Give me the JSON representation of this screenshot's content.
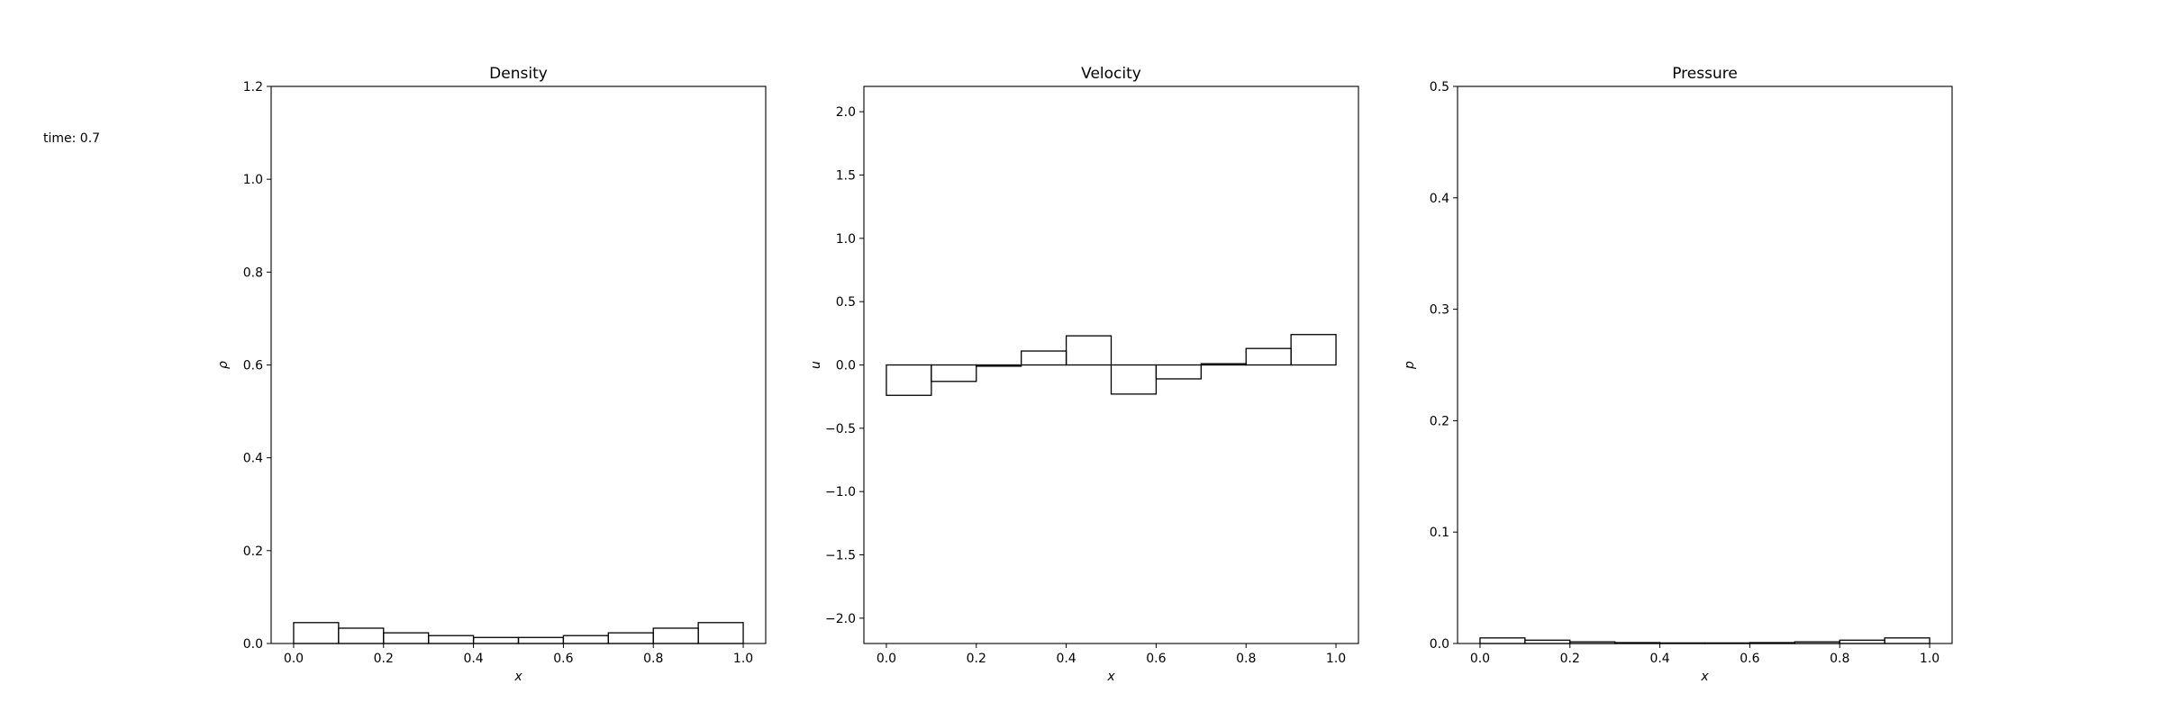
{
  "time_label": "time: 0.7",
  "chart_data": [
    {
      "type": "bar",
      "title": "Density",
      "xlabel": "x",
      "ylabel": "ρ",
      "xlim": [
        -0.05,
        1.05
      ],
      "ylim": [
        0,
        1.2
      ],
      "xticks": [
        0.0,
        0.2,
        0.4,
        0.6,
        0.8,
        1.0
      ],
      "xtick_labels": [
        "0.0",
        "0.2",
        "0.4",
        "0.6",
        "0.8",
        "1.0"
      ],
      "yticks": [
        0.0,
        0.2,
        0.4,
        0.6,
        0.8,
        1.0,
        1.2
      ],
      "ytick_labels": [
        "0.0",
        "0.2",
        "0.4",
        "0.6",
        "0.8",
        "1.0",
        "1.2"
      ],
      "bin_edges": [
        0.0,
        0.1,
        0.2,
        0.3,
        0.4,
        0.5,
        0.6,
        0.7,
        0.8,
        0.9,
        1.0
      ],
      "values": [
        0.045,
        0.033,
        0.023,
        0.017,
        0.013,
        0.013,
        0.017,
        0.023,
        0.033,
        0.045
      ]
    },
    {
      "type": "bar",
      "title": "Velocity",
      "xlabel": "x",
      "ylabel": "u",
      "xlim": [
        -0.05,
        1.05
      ],
      "ylim": [
        -2.2,
        2.2
      ],
      "xticks": [
        0.0,
        0.2,
        0.4,
        0.6,
        0.8,
        1.0
      ],
      "xtick_labels": [
        "0.0",
        "0.2",
        "0.4",
        "0.6",
        "0.8",
        "1.0"
      ],
      "yticks": [
        -2.0,
        -1.5,
        -1.0,
        -0.5,
        0.0,
        0.5,
        1.0,
        1.5,
        2.0
      ],
      "ytick_labels": [
        "−2.0",
        "−1.5",
        "−1.0",
        "−0.5",
        "0.0",
        "0.5",
        "1.0",
        "1.5",
        "2.0"
      ],
      "bin_edges": [
        0.0,
        0.1,
        0.2,
        0.3,
        0.4,
        0.5,
        0.6,
        0.7,
        0.8,
        0.9,
        1.0
      ],
      "values": [
        -0.24,
        -0.13,
        -0.01,
        0.11,
        0.23,
        -0.23,
        -0.11,
        0.01,
        0.13,
        0.24
      ]
    },
    {
      "type": "bar",
      "title": "Pressure",
      "xlabel": "x",
      "ylabel": "p",
      "xlim": [
        -0.05,
        1.05
      ],
      "ylim": [
        0,
        0.5
      ],
      "xticks": [
        0.0,
        0.2,
        0.4,
        0.6,
        0.8,
        1.0
      ],
      "xtick_labels": [
        "0.0",
        "0.2",
        "0.4",
        "0.6",
        "0.8",
        "1.0"
      ],
      "yticks": [
        0.0,
        0.1,
        0.2,
        0.3,
        0.4,
        0.5
      ],
      "ytick_labels": [
        "0.0",
        "0.1",
        "0.2",
        "0.3",
        "0.4",
        "0.5"
      ],
      "bin_edges": [
        0.0,
        0.1,
        0.2,
        0.3,
        0.4,
        0.5,
        0.6,
        0.7,
        0.8,
        0.9,
        1.0
      ],
      "values": [
        0.005,
        0.003,
        0.0015,
        0.0008,
        0.0005,
        0.0005,
        0.0008,
        0.0015,
        0.003,
        0.005
      ]
    }
  ]
}
